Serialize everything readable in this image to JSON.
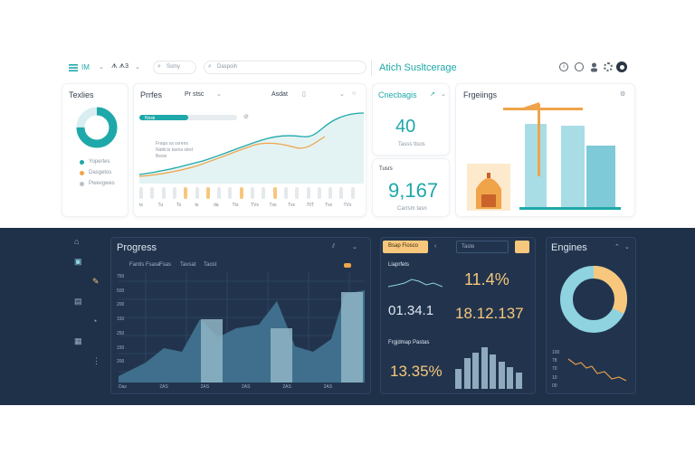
{
  "colors": {
    "teal": "#1fa8a9",
    "orange": "#f0a44a",
    "light_blue": "#8fd3e0",
    "navy": "#1f3049",
    "dark_card": "#22344d",
    "area_fill": "#3f6f8c"
  },
  "topbar": {
    "app_label": "IM",
    "filter_label": "ᗑ ᗑ3",
    "search1_placeholder": "Ssmy",
    "search2_placeholder": "Daspoih",
    "title": "Atich Susltcerage",
    "icons": [
      "info-icon",
      "clock-icon",
      "user-icon",
      "settings-icon",
      "dark-mode-icon"
    ]
  },
  "tasks_card": {
    "title": "Texlies",
    "legend": [
      "Yopertes",
      "Dasgetos",
      "Pwevgwes"
    ],
    "donut": {
      "teal": 0.75,
      "light": 0.25
    }
  },
  "project_card": {
    "title": "Prrfes",
    "filter": "Pr stsc",
    "dropdown": "Asdat",
    "progress_label": "Nnsk",
    "progress_fraction": 0.5,
    "annotation": [
      "Fraqa sa ssrens",
      "Natticis tasna sted",
      "Besw"
    ],
    "x_labels": [
      "ts",
      "Tu",
      "To",
      "ts",
      "da",
      "Tts",
      "TVs",
      "Txs",
      "Tvs",
      "70T",
      "Tvs",
      "TVv"
    ]
  },
  "changes_card": {
    "title": "Cnecbagis",
    "value": "40",
    "caption": "Tasss ttsos",
    "stat_label": "Tusrs",
    "stat_value": "9,167",
    "stat_caption": "Carrsm tasn"
  },
  "engineering_card": {
    "title": "Frgeiings"
  },
  "progress_panel": {
    "title": "Progress",
    "tabs": [
      "Fantis Fsase",
      "Fsas",
      "Tavsat",
      "Taost"
    ],
    "y_labels": [
      "750",
      "500",
      "200",
      "150",
      "250",
      "150",
      "200"
    ],
    "x_labels": [
      "Das",
      "2AS",
      "2AS",
      "2AS",
      "2AS",
      "2AS"
    ],
    "sidebar_icons": [
      "home-icon",
      "folder-icon",
      "edit-icon",
      "document-icon",
      "chart-icon",
      "calendar-icon",
      "more-icon"
    ]
  },
  "stats_panel": {
    "button": "Bsap Fiosco",
    "search": "Taste",
    "label1": "Liaprfets",
    "value1": "11.4%",
    "value2": "01.34.1",
    "value3": "18.12.137",
    "label2": "Frgjdmap Pastas",
    "value4": "13.35%"
  },
  "engines_panel": {
    "title": "Engines",
    "donut": {
      "orange": 0.32,
      "light_blue": 0.68
    },
    "y_labels": [
      "100",
      "78",
      "70",
      "10",
      "00"
    ]
  }
}
